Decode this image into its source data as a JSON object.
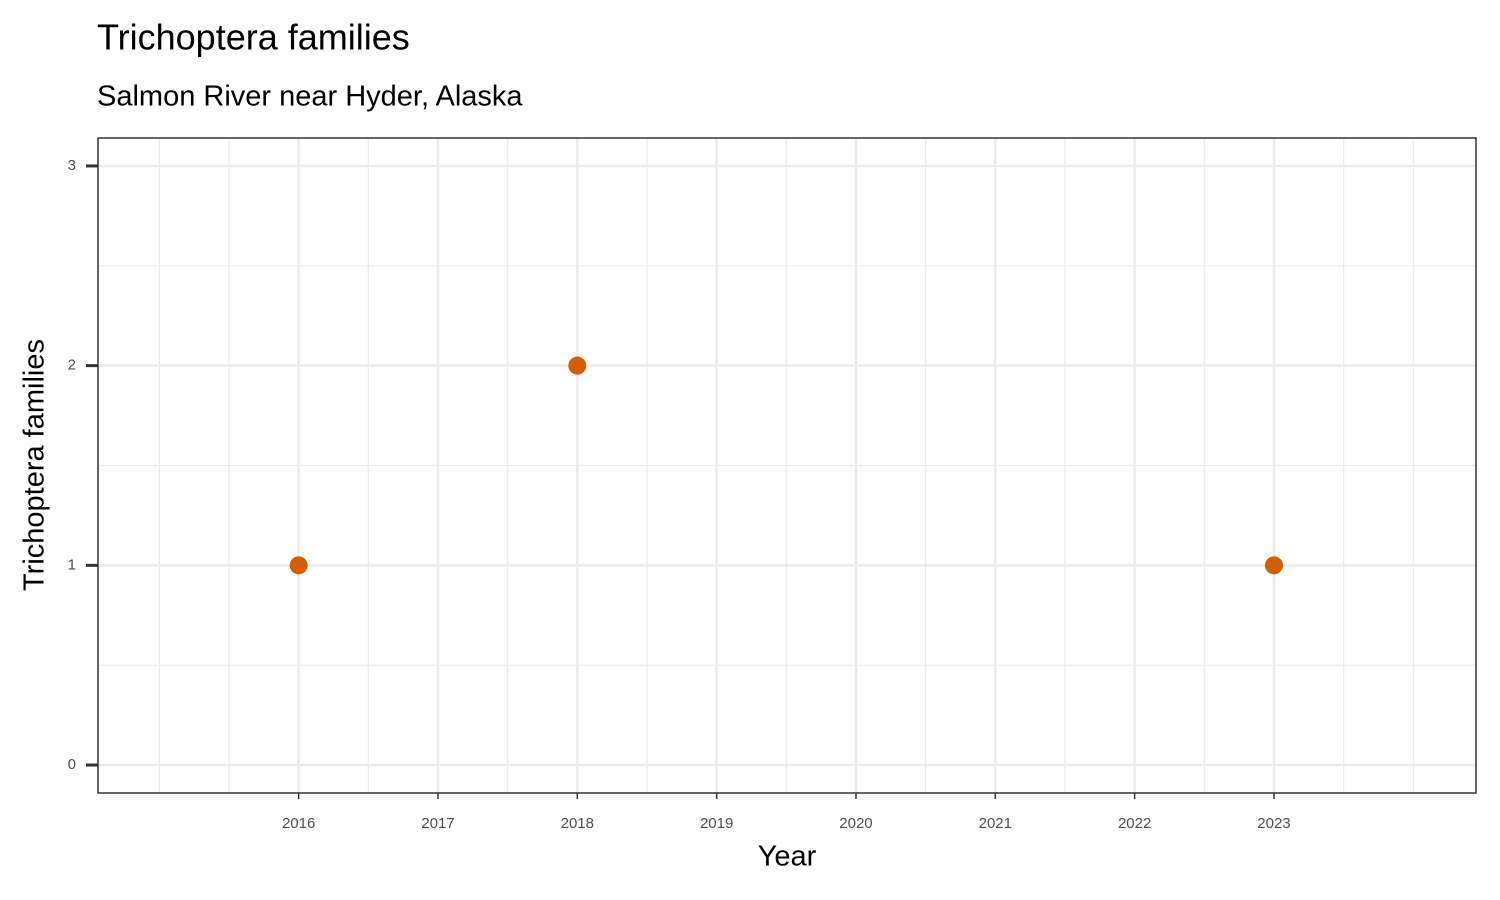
{
  "chart_data": {
    "type": "scatter",
    "title": "Trichoptera families",
    "subtitle": "Salmon River near Hyder, Alaska",
    "x_label": "Year",
    "y_label": "Trichoptera families",
    "x": [
      2016,
      2018,
      2023
    ],
    "values": [
      1,
      2,
      1
    ],
    "color": "#d55e00",
    "xlim": [
      2014.56,
      2024.45
    ],
    "xticks": [
      2016,
      2017,
      2018,
      2019,
      2020,
      2021,
      2022,
      2023
    ],
    "ylim": [
      -0.14,
      3.14
    ],
    "yticks": [
      0,
      1,
      2,
      3
    ],
    "grid": true
  }
}
